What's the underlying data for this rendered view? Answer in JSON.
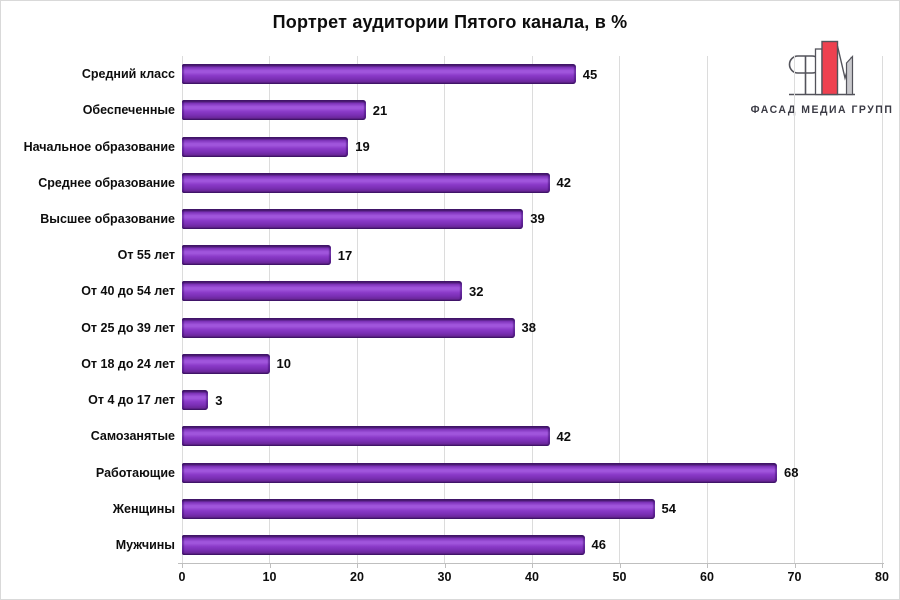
{
  "title": "Портрет аудитории Пятого канала, в %",
  "logo": {
    "text": "ФАСАД МЕДИА ГРУПП",
    "red": "#ee4150",
    "gray": "#c9c9cd",
    "outline": "#53535b",
    "text_color": "#3b3b45"
  },
  "colors": {
    "bar_main": "#8a3ac8",
    "bar_highlight": "#a055dc",
    "bar_low": "#6a2699",
    "bar_edge": "#45186c",
    "gridline": "#dcdcdc",
    "axis_line": "#bfbfbf",
    "text": "#0d0d0d",
    "frame_border": "#d9d9d9"
  },
  "chart_data": {
    "type": "bar",
    "orientation": "horizontal",
    "title": "Портрет аудитории Пятого канала, в %",
    "categories": [
      "Средний класс",
      "Обеспеченные",
      "Начальное образование",
      "Среднее образование",
      "Высшее образование",
      "От 55 лет",
      "От 40 до 54 лет",
      "От 25 до 39 лет",
      "От 18 до 24 лет",
      "От 4 до 17 лет",
      "Самозанятые",
      "Работающие",
      "Женщины",
      "Мужчины"
    ],
    "values": [
      45,
      21,
      19,
      42,
      39,
      17,
      32,
      38,
      10,
      3,
      42,
      68,
      54,
      46
    ],
    "xlabel": "",
    "ylabel": "",
    "xlim": [
      0,
      80
    ],
    "xticks": [
      0,
      10,
      20,
      30,
      40,
      50,
      60,
      70,
      80
    ],
    "grid": true,
    "value_labels": true,
    "legend": false
  }
}
